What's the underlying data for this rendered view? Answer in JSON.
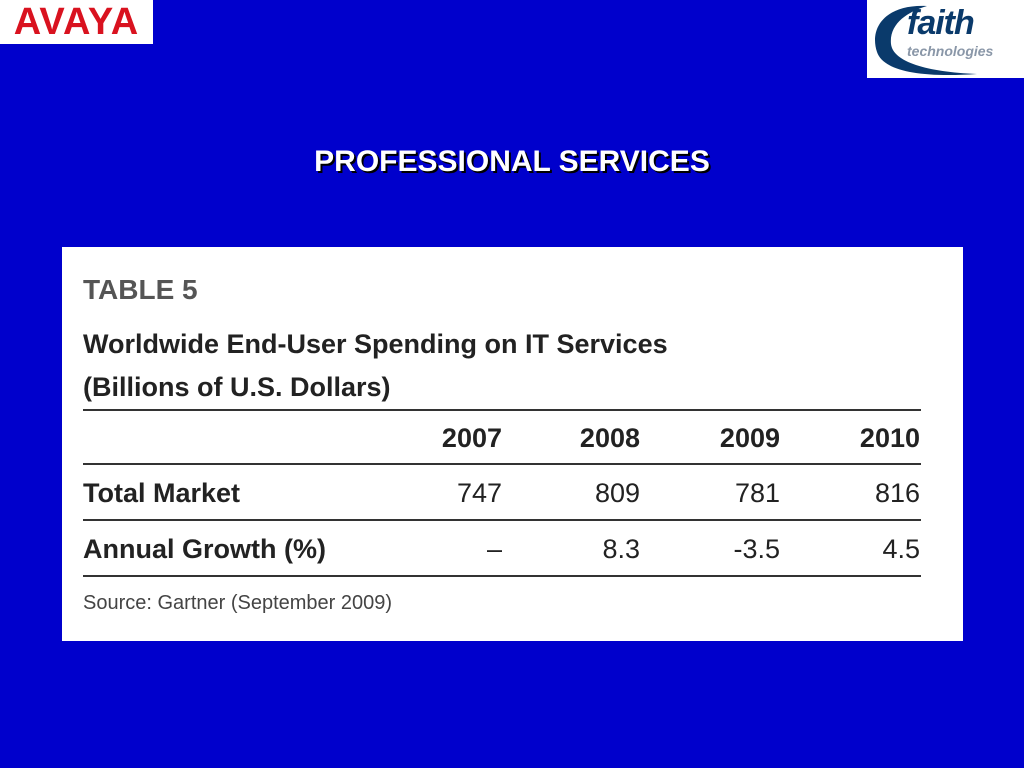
{
  "logos": {
    "avaya": "AVAYA",
    "faith_main": "faith",
    "faith_sub": "technologies"
  },
  "slide": {
    "title": "PROFESSIONAL SERVICES"
  },
  "table": {
    "label": "TABLE 5",
    "heading_line1": "Worldwide End-User Spending on IT Services",
    "heading_line2": "(Billions of U.S. Dollars)",
    "columns": [
      "2007",
      "2008",
      "2009",
      "2010"
    ],
    "rows": [
      {
        "label": "Total Market",
        "values": [
          "747",
          "809",
          "781",
          "816"
        ]
      },
      {
        "label": "Annual Growth (%)",
        "values": [
          "–",
          "8.3",
          "-3.5",
          "4.5"
        ]
      }
    ],
    "source": "Source: Gartner (September 2009)"
  },
  "colors": {
    "background": "#0000CC",
    "avaya_red": "#d9121f",
    "faith_navy": "#0a3a6b"
  }
}
